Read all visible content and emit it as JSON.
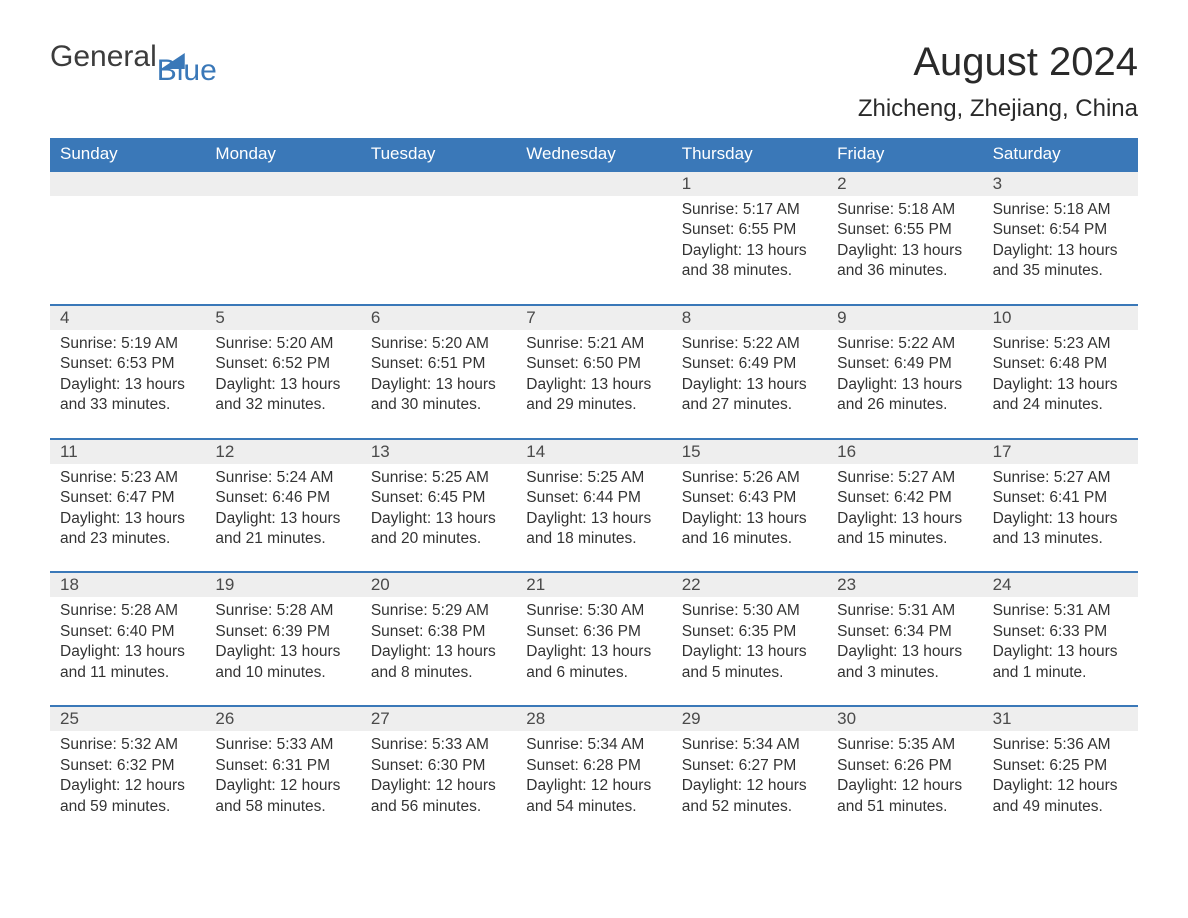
{
  "logo": {
    "text1": "General",
    "text2": "Blue",
    "brand_color": "#3a78b8"
  },
  "title": "August 2024",
  "location": "Zhicheng, Zhejiang, China",
  "colors": {
    "header_bg": "#3a78b8",
    "header_text": "#ffffff",
    "daynum_bg": "#eeeeee",
    "daynum_border": "#3a78b8",
    "body_text": "#333333",
    "page_bg": "#ffffff"
  },
  "day_names": [
    "Sunday",
    "Monday",
    "Tuesday",
    "Wednesday",
    "Thursday",
    "Friday",
    "Saturday"
  ],
  "weeks": [
    {
      "days": [
        null,
        null,
        null,
        null,
        {
          "num": "1",
          "sunrise": "Sunrise: 5:17 AM",
          "sunset": "Sunset: 6:55 PM",
          "day1": "Daylight: 13 hours",
          "day2": "and 38 minutes."
        },
        {
          "num": "2",
          "sunrise": "Sunrise: 5:18 AM",
          "sunset": "Sunset: 6:55 PM",
          "day1": "Daylight: 13 hours",
          "day2": "and 36 minutes."
        },
        {
          "num": "3",
          "sunrise": "Sunrise: 5:18 AM",
          "sunset": "Sunset: 6:54 PM",
          "day1": "Daylight: 13 hours",
          "day2": "and 35 minutes."
        }
      ]
    },
    {
      "days": [
        {
          "num": "4",
          "sunrise": "Sunrise: 5:19 AM",
          "sunset": "Sunset: 6:53 PM",
          "day1": "Daylight: 13 hours",
          "day2": "and 33 minutes."
        },
        {
          "num": "5",
          "sunrise": "Sunrise: 5:20 AM",
          "sunset": "Sunset: 6:52 PM",
          "day1": "Daylight: 13 hours",
          "day2": "and 32 minutes."
        },
        {
          "num": "6",
          "sunrise": "Sunrise: 5:20 AM",
          "sunset": "Sunset: 6:51 PM",
          "day1": "Daylight: 13 hours",
          "day2": "and 30 minutes."
        },
        {
          "num": "7",
          "sunrise": "Sunrise: 5:21 AM",
          "sunset": "Sunset: 6:50 PM",
          "day1": "Daylight: 13 hours",
          "day2": "and 29 minutes."
        },
        {
          "num": "8",
          "sunrise": "Sunrise: 5:22 AM",
          "sunset": "Sunset: 6:49 PM",
          "day1": "Daylight: 13 hours",
          "day2": "and 27 minutes."
        },
        {
          "num": "9",
          "sunrise": "Sunrise: 5:22 AM",
          "sunset": "Sunset: 6:49 PM",
          "day1": "Daylight: 13 hours",
          "day2": "and 26 minutes."
        },
        {
          "num": "10",
          "sunrise": "Sunrise: 5:23 AM",
          "sunset": "Sunset: 6:48 PM",
          "day1": "Daylight: 13 hours",
          "day2": "and 24 minutes."
        }
      ]
    },
    {
      "days": [
        {
          "num": "11",
          "sunrise": "Sunrise: 5:23 AM",
          "sunset": "Sunset: 6:47 PM",
          "day1": "Daylight: 13 hours",
          "day2": "and 23 minutes."
        },
        {
          "num": "12",
          "sunrise": "Sunrise: 5:24 AM",
          "sunset": "Sunset: 6:46 PM",
          "day1": "Daylight: 13 hours",
          "day2": "and 21 minutes."
        },
        {
          "num": "13",
          "sunrise": "Sunrise: 5:25 AM",
          "sunset": "Sunset: 6:45 PM",
          "day1": "Daylight: 13 hours",
          "day2": "and 20 minutes."
        },
        {
          "num": "14",
          "sunrise": "Sunrise: 5:25 AM",
          "sunset": "Sunset: 6:44 PM",
          "day1": "Daylight: 13 hours",
          "day2": "and 18 minutes."
        },
        {
          "num": "15",
          "sunrise": "Sunrise: 5:26 AM",
          "sunset": "Sunset: 6:43 PM",
          "day1": "Daylight: 13 hours",
          "day2": "and 16 minutes."
        },
        {
          "num": "16",
          "sunrise": "Sunrise: 5:27 AM",
          "sunset": "Sunset: 6:42 PM",
          "day1": "Daylight: 13 hours",
          "day2": "and 15 minutes."
        },
        {
          "num": "17",
          "sunrise": "Sunrise: 5:27 AM",
          "sunset": "Sunset: 6:41 PM",
          "day1": "Daylight: 13 hours",
          "day2": "and 13 minutes."
        }
      ]
    },
    {
      "days": [
        {
          "num": "18",
          "sunrise": "Sunrise: 5:28 AM",
          "sunset": "Sunset: 6:40 PM",
          "day1": "Daylight: 13 hours",
          "day2": "and 11 minutes."
        },
        {
          "num": "19",
          "sunrise": "Sunrise: 5:28 AM",
          "sunset": "Sunset: 6:39 PM",
          "day1": "Daylight: 13 hours",
          "day2": "and 10 minutes."
        },
        {
          "num": "20",
          "sunrise": "Sunrise: 5:29 AM",
          "sunset": "Sunset: 6:38 PM",
          "day1": "Daylight: 13 hours",
          "day2": "and 8 minutes."
        },
        {
          "num": "21",
          "sunrise": "Sunrise: 5:30 AM",
          "sunset": "Sunset: 6:36 PM",
          "day1": "Daylight: 13 hours",
          "day2": "and 6 minutes."
        },
        {
          "num": "22",
          "sunrise": "Sunrise: 5:30 AM",
          "sunset": "Sunset: 6:35 PM",
          "day1": "Daylight: 13 hours",
          "day2": "and 5 minutes."
        },
        {
          "num": "23",
          "sunrise": "Sunrise: 5:31 AM",
          "sunset": "Sunset: 6:34 PM",
          "day1": "Daylight: 13 hours",
          "day2": "and 3 minutes."
        },
        {
          "num": "24",
          "sunrise": "Sunrise: 5:31 AM",
          "sunset": "Sunset: 6:33 PM",
          "day1": "Daylight: 13 hours",
          "day2": "and 1 minute."
        }
      ]
    },
    {
      "days": [
        {
          "num": "25",
          "sunrise": "Sunrise: 5:32 AM",
          "sunset": "Sunset: 6:32 PM",
          "day1": "Daylight: 12 hours",
          "day2": "and 59 minutes."
        },
        {
          "num": "26",
          "sunrise": "Sunrise: 5:33 AM",
          "sunset": "Sunset: 6:31 PM",
          "day1": "Daylight: 12 hours",
          "day2": "and 58 minutes."
        },
        {
          "num": "27",
          "sunrise": "Sunrise: 5:33 AM",
          "sunset": "Sunset: 6:30 PM",
          "day1": "Daylight: 12 hours",
          "day2": "and 56 minutes."
        },
        {
          "num": "28",
          "sunrise": "Sunrise: 5:34 AM",
          "sunset": "Sunset: 6:28 PM",
          "day1": "Daylight: 12 hours",
          "day2": "and 54 minutes."
        },
        {
          "num": "29",
          "sunrise": "Sunrise: 5:34 AM",
          "sunset": "Sunset: 6:27 PM",
          "day1": "Daylight: 12 hours",
          "day2": "and 52 minutes."
        },
        {
          "num": "30",
          "sunrise": "Sunrise: 5:35 AM",
          "sunset": "Sunset: 6:26 PM",
          "day1": "Daylight: 12 hours",
          "day2": "and 51 minutes."
        },
        {
          "num": "31",
          "sunrise": "Sunrise: 5:36 AM",
          "sunset": "Sunset: 6:25 PM",
          "day1": "Daylight: 12 hours",
          "day2": "and 49 minutes."
        }
      ]
    }
  ]
}
